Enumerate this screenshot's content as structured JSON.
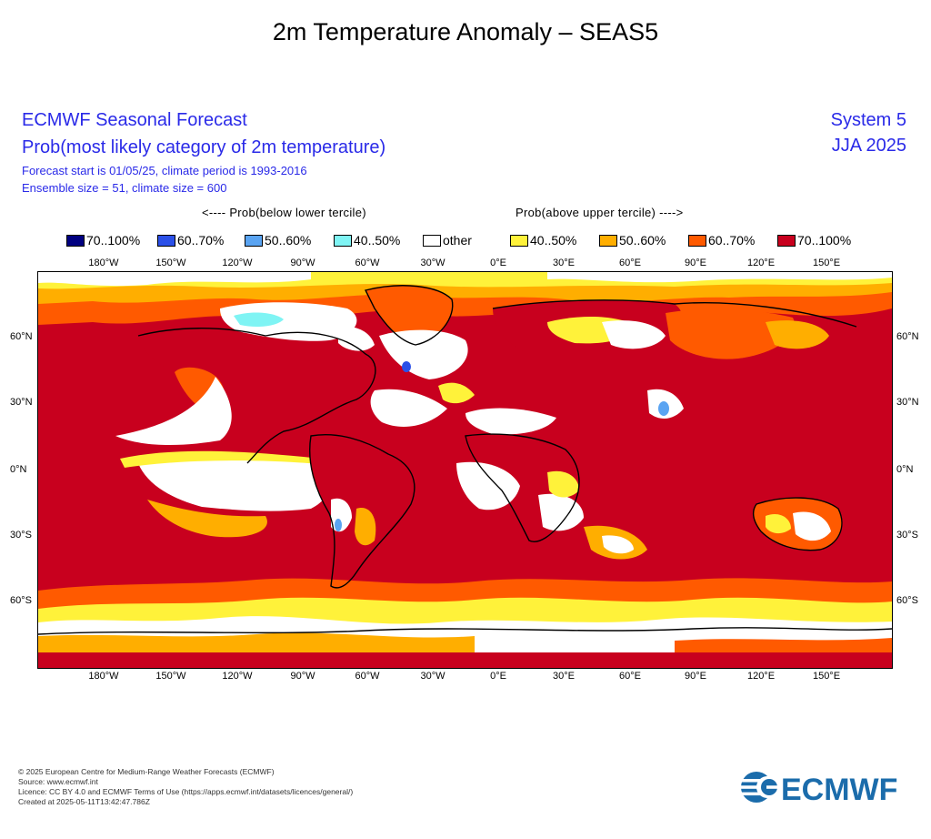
{
  "title": "2m Temperature Anomaly – SEAS5",
  "header": {
    "line1": "ECMWF Seasonal Forecast",
    "line2": "Prob(most likely category of 2m temperature)",
    "line3": "Forecast start is 01/05/25, climate period is 1993-2016",
    "line4": "Ensemble size = 51, climate size = 600",
    "system": "System 5",
    "season": "JJA 2025"
  },
  "tercile_labels": {
    "below": "<---- Prob(below lower tercile)",
    "above": "Prob(above upper tercile) ---->"
  },
  "legend": [
    {
      "label": "70..100%",
      "color": "#000080"
    },
    {
      "label": "60..70%",
      "color": "#2b50e8"
    },
    {
      "label": "50..60%",
      "color": "#5aa4f2"
    },
    {
      "label": "40..50%",
      "color": "#7ff4f4"
    },
    {
      "label": "other",
      "color": "#ffffff"
    },
    {
      "label": "40..50%",
      "color": "#fff23a"
    },
    {
      "label": "50..60%",
      "color": "#ffae00"
    },
    {
      "label": "60..70%",
      "color": "#ff5a00"
    },
    {
      "label": "70..100%",
      "color": "#c8001e"
    }
  ],
  "map": {
    "lon_labels": [
      "180°W",
      "150°W",
      "120°W",
      "90°W",
      "60°W",
      "30°W",
      "0°E",
      "30°E",
      "60°E",
      "90°E",
      "120°E",
      "150°E"
    ],
    "lat_labels": [
      "60°N",
      "30°N",
      "0°N",
      "30°S",
      "60°S"
    ]
  },
  "credits": [
    "© 2025 European Centre for Medium-Range Weather Forecasts (ECMWF)",
    "Source: www.ecmwf.int",
    "Licence: CC BY 4.0 and ECMWF Terms of Use (https://apps.ecmwf.int/datasets/licences/general/)",
    "Created at 2025-05-11T13:42:47.786Z"
  ],
  "logo_text": "ECMWF"
}
